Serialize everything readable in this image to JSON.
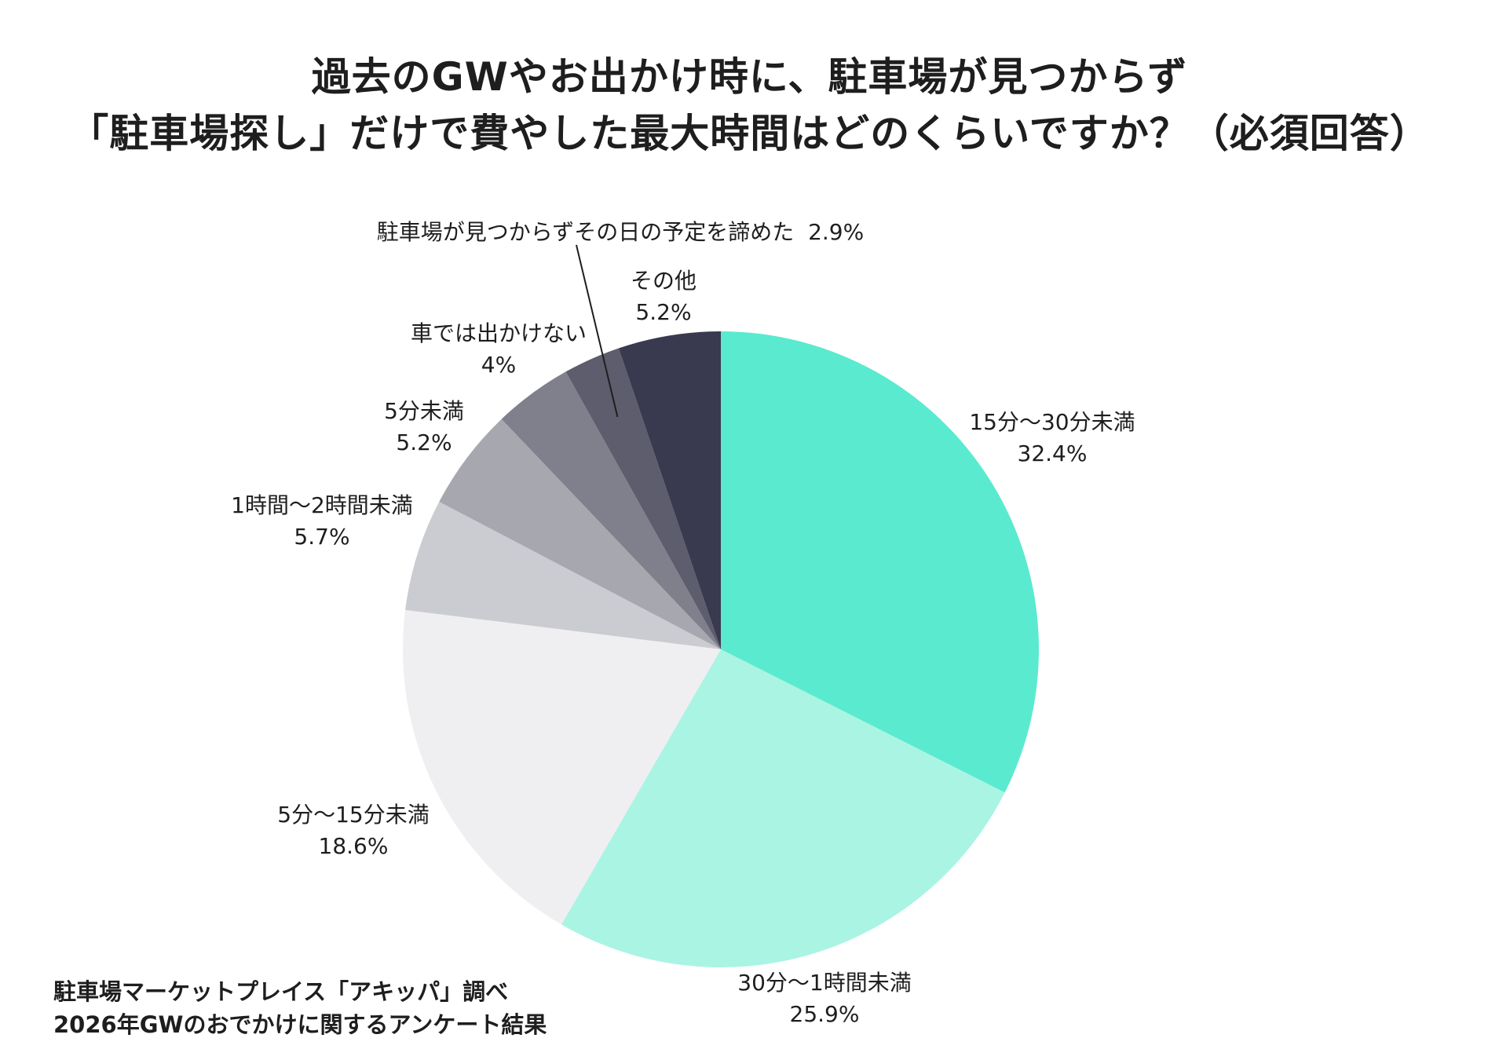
{
  "title_lines": [
    "過去のGWやお出かけ時に、駐車場が見つからず",
    "「駐車場探し」だけで費やした最大時間はどのくらいですか？（必須回答）"
  ],
  "chart_data": {
    "type": "pie",
    "title": "過去のGWやお出かけ時に、駐車場が見つからず「駐車場探し」だけで費やした最大時間はどのくらいですか？（必須回答）",
    "start_angle": "12 o'clock",
    "direction": "clockwise",
    "unit": "%",
    "slices": [
      {
        "label": "15分〜30分未満",
        "value": 32.4,
        "value_label": "32.4%",
        "color": "#5aeacf"
      },
      {
        "label": "30分〜1時間未満",
        "value": 25.9,
        "value_label": "25.9%",
        "color": "#aaf4e4"
      },
      {
        "label": "5分〜15分未満",
        "value": 18.6,
        "value_label": "18.6%",
        "color": "#efeff1"
      },
      {
        "label": "1時間〜2時間未満",
        "value": 5.7,
        "value_label": "5.7%",
        "color": "#cbccd1"
      },
      {
        "label": "5分未満",
        "value": 5.2,
        "value_label": "5.2%",
        "color": "#a7a7b0"
      },
      {
        "label": "車では出かけない",
        "value": 4,
        "value_label": "4%",
        "color": "#80808c"
      },
      {
        "label": "駐車場が見つからずその日の予定を諦めた",
        "value": 2.9,
        "value_label": "2.9%",
        "color": "#5d5d6e"
      },
      {
        "label": "その他",
        "value": 5.2,
        "value_label": "5.2%",
        "color": "#393a4f"
      }
    ]
  },
  "source_lines": [
    "駐車場マーケットプレイス「アキッパ」調べ",
    "2026年GWのおでかけに関するアンケート結果"
  ]
}
